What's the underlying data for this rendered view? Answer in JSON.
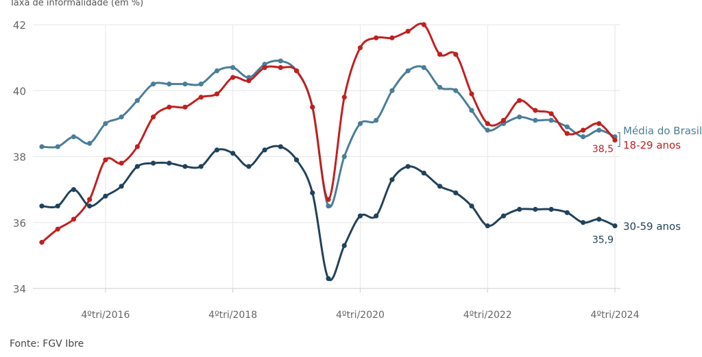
{
  "chart_data": {
    "type": "line",
    "ylabel": "Taxa de informalidade (em %)",
    "source": "Fonte: FGV Ibre",
    "ylim": [
      34,
      42
    ],
    "yticks": [
      34,
      36,
      38,
      40,
      42
    ],
    "xticks": [
      {
        "label": "4ºtri/2016",
        "index": 4
      },
      {
        "label": "4ºtri/2018",
        "index": 12
      },
      {
        "label": "4ºtri/2020",
        "index": 20
      },
      {
        "label": "4ºtri/2022",
        "index": 28
      },
      {
        "label": "4ºtri/2024",
        "index": 36
      }
    ],
    "grid": true,
    "series": [
      {
        "name": "Média do Brasil",
        "color": "#4a7d99",
        "values": [
          38.3,
          38.3,
          38.6,
          38.4,
          39.0,
          39.2,
          39.7,
          40.2,
          40.2,
          40.2,
          40.2,
          40.6,
          40.7,
          40.4,
          40.8,
          40.9,
          40.6,
          39.5,
          36.5,
          38.0,
          39.0,
          39.1,
          40.0,
          40.6,
          40.7,
          40.1,
          40.0,
          39.4,
          38.8,
          39.0,
          39.2,
          39.1,
          39.1,
          38.9,
          38.6,
          38.8,
          38.6
        ]
      },
      {
        "name": "18-29 anos",
        "color": "#c0201f",
        "end_label": "38,5",
        "values": [
          35.4,
          35.8,
          36.1,
          36.7,
          37.9,
          37.8,
          38.3,
          39.2,
          39.5,
          39.5,
          39.8,
          39.9,
          40.4,
          40.3,
          40.7,
          40.7,
          40.6,
          39.5,
          36.7,
          39.8,
          41.3,
          41.6,
          41.6,
          41.8,
          42.0,
          41.1,
          41.1,
          39.9,
          39.0,
          39.1,
          39.7,
          39.4,
          39.3,
          38.7,
          38.8,
          39.0,
          38.5
        ]
      },
      {
        "name": "30-59 anos",
        "color": "#22425a",
        "end_label": "35,9",
        "values": [
          36.5,
          36.5,
          37.0,
          36.5,
          36.8,
          37.1,
          37.7,
          37.8,
          37.8,
          37.7,
          37.7,
          38.2,
          38.1,
          37.7,
          38.2,
          38.3,
          37.9,
          36.9,
          34.3,
          35.3,
          36.2,
          36.2,
          37.3,
          37.7,
          37.5,
          37.1,
          36.9,
          36.5,
          35.9,
          36.2,
          36.4,
          36.4,
          36.4,
          36.3,
          36.0,
          36.1,
          35.9
        ]
      }
    ]
  }
}
